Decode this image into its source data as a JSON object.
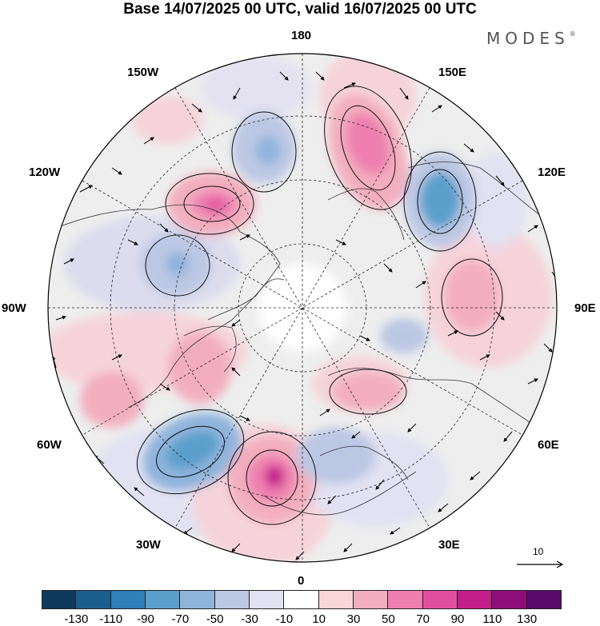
{
  "title": "Base 14/07/2025 00 UTC, valid 16/07/2025 00 UTC",
  "brand": "MODES",
  "brand_mark": "®",
  "longitude_labels": {
    "top": "180",
    "bottom": "0",
    "left": "90W",
    "right": "90E",
    "upper_left_1": "150W",
    "upper_left_2": "120W",
    "upper_right_1": "150E",
    "upper_right_2": "120E",
    "lower_left_1": "60W",
    "lower_left_2": "30W",
    "lower_right_1": "60E",
    "lower_right_2": "30E"
  },
  "reference_vector": "10",
  "colorbar": {
    "colors": [
      "#0d3a5c",
      "#1a5e8e",
      "#2f7fb8",
      "#5a9fcc",
      "#8fb4dc",
      "#bcc7e4",
      "#e2e2f2",
      "#ffffff",
      "#f9d6d8",
      "#f3aebe",
      "#ee7fb0",
      "#e04f9f",
      "#c21f8a",
      "#8e0d7a",
      "#5a0a6a"
    ],
    "tick_labels": [
      "-130",
      "-110",
      "-90",
      "-70",
      "-50",
      "-30",
      "-10",
      "10",
      "30",
      "50",
      "70",
      "90",
      "110",
      "130"
    ]
  },
  "anomaly_centers": [
    {
      "sign": "positive",
      "level": 90,
      "region": "near 150E / 60N"
    },
    {
      "sign": "positive",
      "level": 90,
      "region": "near 150W"
    },
    {
      "sign": "negative",
      "level": -70,
      "region": "near 120E"
    },
    {
      "sign": "negative",
      "level": -50,
      "region": "near 180 / 60N"
    },
    {
      "sign": "negative",
      "level": -50,
      "region": "near 100W"
    },
    {
      "sign": "positive",
      "level": 50,
      "region": "near 90E"
    },
    {
      "sign": "negative",
      "level": -70,
      "region": "near 45W"
    },
    {
      "sign": "positive",
      "level": 110,
      "region": "near 20W"
    },
    {
      "sign": "positive",
      "level": 50,
      "region": "near 40E"
    }
  ]
}
